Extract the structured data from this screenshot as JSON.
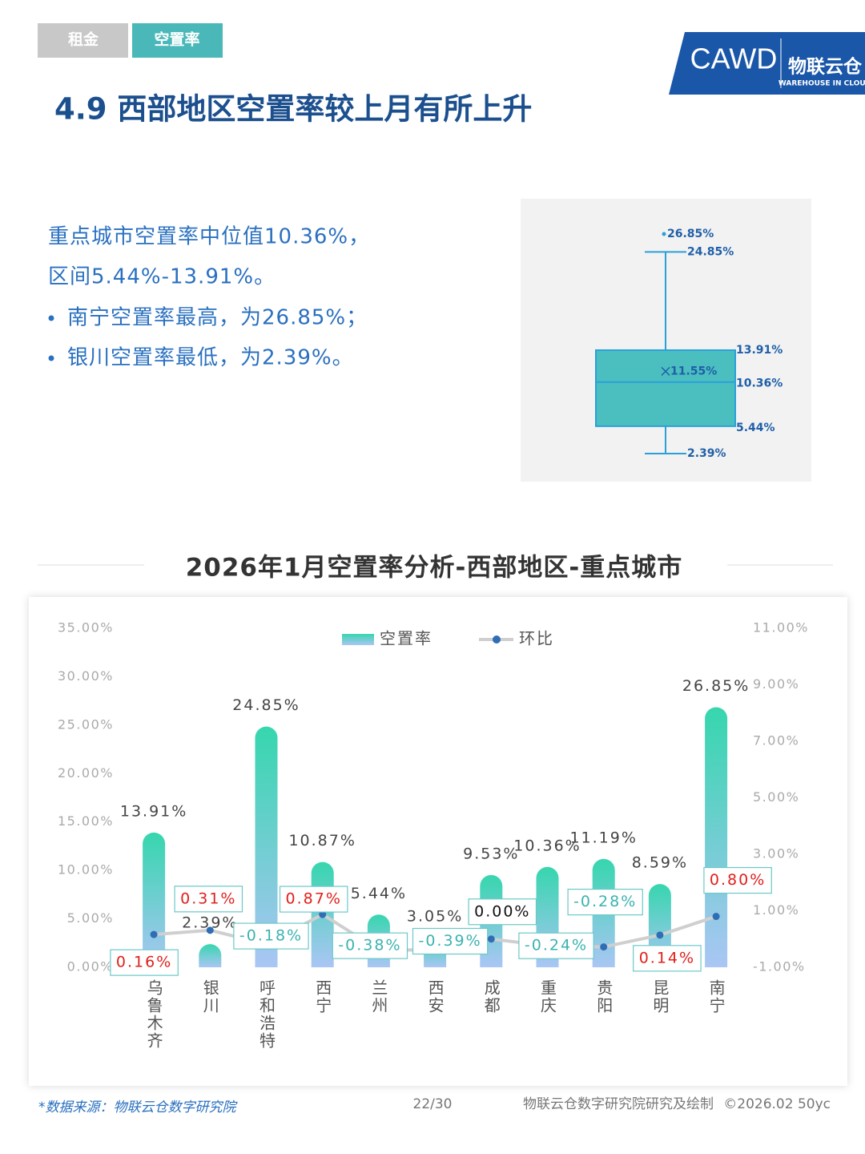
{
  "tabs": [
    "租金",
    "空置率"
  ],
  "logo": {
    "name": "CAWD",
    "brand": "物联云仓",
    "tagline": "WAREHOUSE IN CLOUD"
  },
  "heading": "4.9 西部地区空置率较上月有所上升",
  "summary": {
    "lines": [
      "重点城市空置率中位值10.36%，",
      "区间5.44%-13.91%。"
    ],
    "bullets": [
      "南宁空置率最高，为26.85%；",
      "银川空置率最低，为2.39%。"
    ]
  },
  "chart_data": [
    {
      "type": "box",
      "color": "#4bbfc0",
      "line_color": "#2aa0d8",
      "values": [
        2.39,
        5.44,
        10.36,
        13.91,
        24.85
      ],
      "value_labels": [
        "2.39%",
        "5.44%",
        "10.36%",
        "13.91%",
        "24.85%"
      ],
      "mean": 11.55,
      "mean_label": "11.55%",
      "outliers": [
        26.85
      ],
      "outlier_labels": [
        "26.85%"
      ]
    },
    {
      "type": "bar-line",
      "title": "2026年1月空置率分析-西部地区-重点城市",
      "categories": [
        "乌鲁木齐",
        "银川",
        "呼和浩特",
        "西宁",
        "兰州",
        "西安",
        "成都",
        "重庆",
        "贵阳",
        "昆明",
        "南宁"
      ],
      "series": [
        {
          "name": "空置率",
          "type": "bar",
          "color": "#36d6ae",
          "values": [
            13.91,
            2.39,
            24.85,
            10.87,
            5.44,
            3.05,
            9.53,
            10.36,
            11.19,
            8.59,
            26.85
          ],
          "value_labels": [
            "13.91%",
            "2.39%",
            "24.85%",
            "10.87%",
            "5.44%",
            "3.05%",
            "9.53%",
            "10.36%",
            "11.19%",
            "8.59%",
            "26.85%"
          ]
        },
        {
          "name": "环比",
          "type": "line",
          "axis": "y2",
          "color": "#cfcfcf",
          "marker_color": "#2f6db5",
          "values": [
            0.16,
            0.31,
            -0.18,
            0.87,
            -0.38,
            -0.39,
            0.0,
            -0.24,
            -0.28,
            0.14,
            0.8
          ],
          "value_labels": [
            "0.16%",
            "0.31%",
            "-0.18%",
            "0.87%",
            "-0.38%",
            "-0.39%",
            "0.00%",
            "-0.24%",
            "-0.28%",
            "0.14%",
            "0.80%"
          ]
        }
      ],
      "ylim": [
        0,
        35
      ],
      "yticks": [
        {
          "value": 0,
          "label": "0.00%"
        },
        {
          "value": 5,
          "label": "5.00%"
        },
        {
          "value": 10,
          "label": "10.00%"
        },
        {
          "value": 15,
          "label": "15.00%"
        },
        {
          "value": 20,
          "label": "20.00%"
        },
        {
          "value": 25,
          "label": "25.00%"
        },
        {
          "value": 30,
          "label": "30.00%"
        },
        {
          "value": 35,
          "label": "35.00%"
        }
      ],
      "y2lim": [
        -1,
        11
      ],
      "y2ticks": [
        {
          "value": -1,
          "label": "-1.00%"
        },
        {
          "value": 1,
          "label": "1.00%"
        },
        {
          "value": 3,
          "label": "3.00%"
        },
        {
          "value": 5,
          "label": "5.00%"
        },
        {
          "value": 7,
          "label": "7.00%"
        },
        {
          "value": 9,
          "label": "9.00%"
        },
        {
          "value": 11,
          "label": "11.00%"
        }
      ]
    }
  ],
  "footer": {
    "source": "*数据来源：物联云仓数字研究院",
    "page": "22/30",
    "credit": "物联云仓数字研究院研究及绘制",
    "copyright": "©2026.02 50yc"
  }
}
